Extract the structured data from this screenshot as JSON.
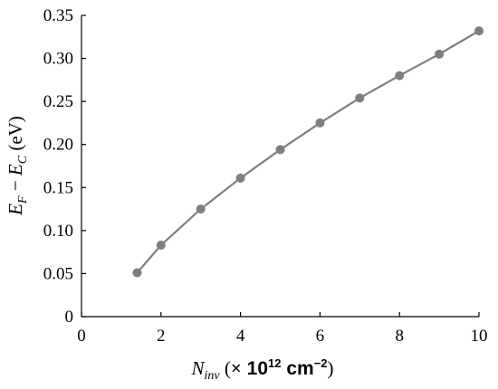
{
  "chart_data": {
    "type": "line",
    "xlabel_parts": {
      "var": "N",
      "sub": "inv",
      "paren_open": " (",
      "times": "×",
      "ten": " 10",
      "exp": "12",
      "unit": " cm",
      "unit_exp": "−2",
      "paren_close": ")"
    },
    "ylabel_parts": {
      "e1": "E",
      "sub1": "F",
      "minus": " − ",
      "e2": "E",
      "sub2": "C",
      "unit": " (eV)"
    },
    "xlim": [
      0,
      10
    ],
    "ylim": [
      0,
      0.35
    ],
    "xticks": [
      "0",
      "2",
      "4",
      "6",
      "8",
      "10"
    ],
    "yticks": [
      "0",
      "0.05",
      "0.10",
      "0.15",
      "0.20",
      "0.25",
      "0.30",
      "0.35"
    ],
    "grid": false,
    "series": [
      {
        "color": "#7f7f7f",
        "x": [
          1.4,
          2,
          3,
          4,
          5,
          6,
          7,
          8,
          9,
          10
        ],
        "y": [
          0.051,
          0.083,
          0.125,
          0.161,
          0.194,
          0.225,
          0.254,
          0.28,
          0.305,
          0.332
        ]
      }
    ]
  }
}
